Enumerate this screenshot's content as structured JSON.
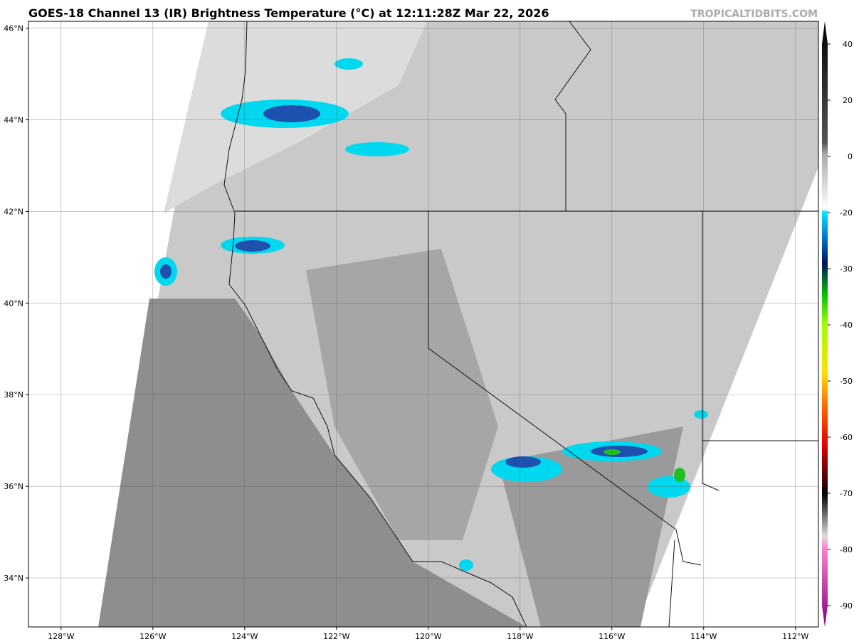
{
  "map": {
    "title": "GOES-18 Channel 13 (IR) Brightness Temperature (°C) at 12:11:28Z Mar 22, 2026",
    "watermark": "TROPICALTIDBITS.COM",
    "xlim": [
      -128.71,
      -111.5
    ],
    "ylim": [
      32.93,
      46.15
    ],
    "xticks": [
      {
        "value": -128,
        "label": "128°W"
      },
      {
        "value": -126,
        "label": "126°W"
      },
      {
        "value": -124,
        "label": "124°W"
      },
      {
        "value": -122,
        "label": "122°W"
      },
      {
        "value": -120,
        "label": "120°W"
      },
      {
        "value": -118,
        "label": "118°W"
      },
      {
        "value": -116,
        "label": "116°W"
      },
      {
        "value": -114,
        "label": "114°W"
      },
      {
        "value": -112,
        "label": "112°W"
      }
    ],
    "yticks": [
      {
        "value": 34,
        "label": "34°N"
      },
      {
        "value": 36,
        "label": "36°N"
      },
      {
        "value": 38,
        "label": "38°N"
      },
      {
        "value": 40,
        "label": "40°N"
      },
      {
        "value": 42,
        "label": "42°N"
      },
      {
        "value": 44,
        "label": "44°N"
      },
      {
        "value": 46,
        "label": "46°N"
      }
    ],
    "grid": true,
    "colorbar_ticks": [
      40,
      20,
      0,
      -20,
      -30,
      -40,
      -50,
      -60,
      -70,
      -80,
      -90
    ]
  }
}
